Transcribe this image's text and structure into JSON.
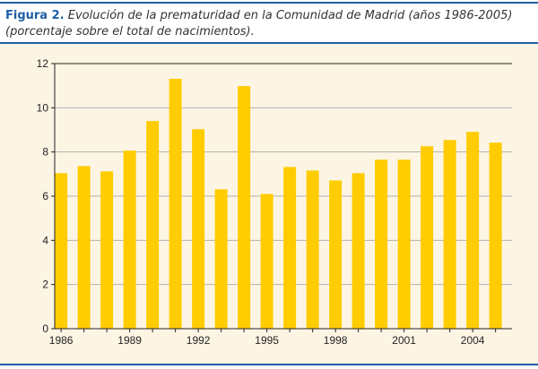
{
  "figure": {
    "label": "Figura 2.",
    "caption": "Evolución de la prematuridad en la Comunidad de Madrid (años 1986-2005) (porcentaje sobre el total de nacimientos)."
  },
  "colors": {
    "bar": "#ffcc00",
    "background": "#fdf5e4",
    "accent": "#1f5fa6",
    "grid": "#b0b0b0"
  },
  "chart_data": {
    "type": "bar",
    "title": "",
    "xlabel": "",
    "ylabel": "",
    "ylim": [
      0,
      12
    ],
    "yticks": [
      0,
      2,
      4,
      6,
      8,
      10,
      12
    ],
    "grid": true,
    "categories": [
      "1986",
      "1987",
      "1988",
      "1989",
      "1990",
      "1991",
      "1992",
      "1993",
      "1994",
      "1995",
      "1996",
      "1997",
      "1998",
      "1999",
      "2000",
      "2001",
      "2002",
      "2003",
      "2004",
      "2005"
    ],
    "xtick_labels": [
      "1986",
      "1989",
      "1992",
      "1995",
      "1998",
      "2001",
      "2004"
    ],
    "values": [
      7.04,
      7.36,
      7.12,
      8.06,
      9.4,
      11.31,
      9.03,
      6.31,
      10.98,
      6.1,
      7.32,
      7.16,
      6.71,
      7.04,
      7.65,
      7.65,
      8.26,
      8.54,
      8.91,
      8.42
    ]
  }
}
